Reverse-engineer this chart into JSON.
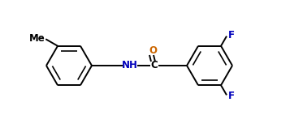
{
  "bg_color": "#ffffff",
  "line_color": "#000000",
  "text_color": "#000000",
  "orange_color": "#cc6600",
  "blue_color": "#0000bb",
  "label_NH": "NH",
  "label_C": "C",
  "label_O": "O",
  "label_Me": "Me",
  "label_F1": "F",
  "label_F2": "F",
  "figsize": [
    3.73,
    1.63
  ],
  "dpi": 100
}
